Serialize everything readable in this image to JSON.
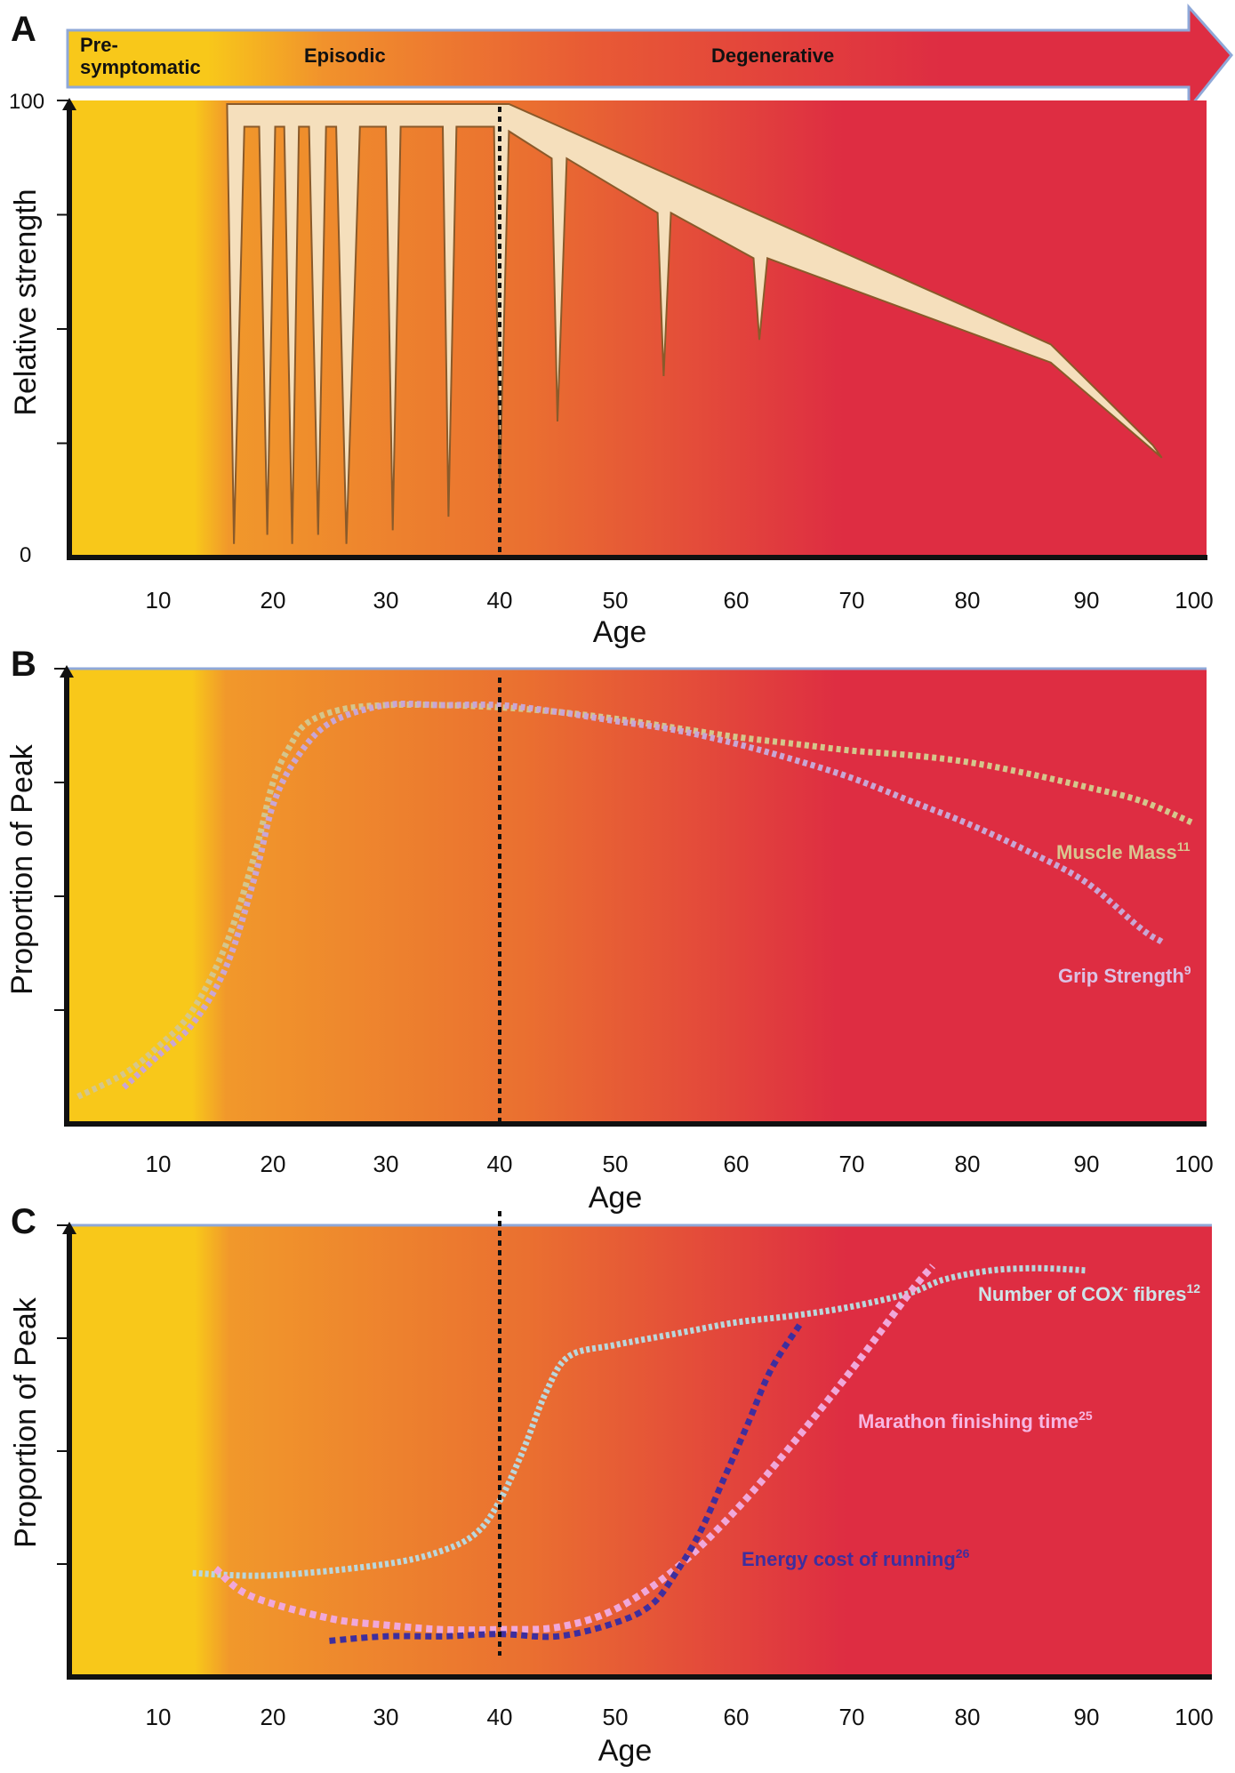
{
  "colors": {
    "yellow": "#F8C81A",
    "orange": "#EE8A2A",
    "red": "#DE2D42",
    "strength_fill": "#F5DFBC",
    "strength_stroke": "#8A5A2A",
    "muscle_mass": "#D4C68C",
    "grip_strength": "#C9A6D4",
    "cox_fibres": "#B9D7DC",
    "marathon": "#F0A8DA",
    "energy_cost": "#3E2E9E"
  },
  "stages": [
    "Pre-\nsymptomatic",
    "Episodic",
    "Degenerative"
  ],
  "chart_data": [
    {
      "panel": "A",
      "type": "area",
      "title": "",
      "xlabel": "Age",
      "ylabel": "Relative strength",
      "xlim": [
        3,
        101
      ],
      "ylim": [
        0,
        100
      ],
      "x_ticks": [
        10,
        20,
        30,
        40,
        50,
        60,
        70,
        80,
        90,
        100
      ],
      "y_tick_labels": [
        "100",
        "0"
      ],
      "vline_age": 40,
      "series": [
        {
          "name": "Relative strength",
          "x": [
            16,
            16.6,
            17.5,
            18.8,
            19.5,
            20.2,
            21,
            21.7,
            22.3,
            23.2,
            24,
            24.7,
            25.6,
            26.5,
            27.7,
            30,
            30.6,
            31.3,
            35,
            35.5,
            36.2,
            39.5,
            40,
            40.8,
            44.5,
            45,
            45.8,
            53.5,
            54,
            54.6,
            61.5,
            62,
            62.7,
            87,
            97
          ],
          "y": [
            100,
            3,
            95,
            95,
            5,
            95,
            95,
            3,
            95,
            95,
            5,
            95,
            95,
            3,
            95,
            95,
            6,
            95,
            95,
            9,
            95,
            95,
            15,
            94,
            88,
            30,
            88,
            76,
            40,
            76,
            66,
            48,
            66,
            43,
            22
          ]
        }
      ]
    },
    {
      "panel": "B",
      "type": "line",
      "title": "",
      "xlabel": "Age",
      "ylabel": "Proportion of Peak",
      "xlim": [
        3,
        101
      ],
      "ylim": [
        0,
        100
      ],
      "x_ticks": [
        10,
        20,
        30,
        40,
        50,
        60,
        70,
        80,
        90,
        100
      ],
      "vline_age": 40,
      "series": [
        {
          "name": "Muscle Mass",
          "superscript": "11",
          "x": [
            3,
            7,
            10,
            13,
            16,
            18.5,
            20,
            21.5,
            23,
            26,
            30,
            35,
            40,
            45,
            50,
            55,
            60,
            65,
            70,
            75,
            80,
            85,
            90,
            95,
            100
          ],
          "y": [
            6,
            11,
            17,
            25,
            40,
            60,
            75,
            83,
            88,
            91,
            92,
            92,
            91.5,
            90.5,
            89,
            87,
            85,
            83.5,
            82,
            81,
            79.5,
            77,
            74,
            71,
            66
          ]
        },
        {
          "name": "Grip Strength",
          "superscript": "9",
          "x": [
            7,
            10,
            13,
            16,
            18.5,
            20,
            22,
            25,
            30,
            35,
            40,
            45,
            50,
            55,
            60,
            65,
            70,
            75,
            80,
            85,
            90,
            95,
            97
          ],
          "y": [
            8,
            15,
            22,
            35,
            55,
            70,
            80,
            88,
            92,
            92,
            92,
            90.5,
            88.5,
            86.5,
            83.5,
            80,
            76,
            71,
            66,
            60,
            53,
            43,
            40
          ]
        }
      ]
    },
    {
      "panel": "C",
      "type": "line",
      "title": "",
      "xlabel": "Age",
      "ylabel": "Proportion of Peak",
      "xlim": [
        3,
        101
      ],
      "ylim": [
        0,
        100
      ],
      "x_ticks": [
        10,
        20,
        30,
        40,
        50,
        60,
        70,
        80,
        90,
        100
      ],
      "vline_age": 40,
      "series": [
        {
          "name": "Number of COX",
          "name_sup_minus": "-",
          "name_suffix": " fibres",
          "superscript": "12",
          "x": [
            13,
            20,
            30,
            35,
            38,
            40,
            42,
            44,
            46,
            50,
            55,
            60,
            65,
            70,
            75,
            78,
            82,
            86,
            90
          ],
          "y": [
            23,
            22.5,
            25,
            28,
            32,
            39,
            50,
            63,
            71,
            73.5,
            76,
            78.5,
            80,
            82,
            85,
            88,
            90,
            90.5,
            90
          ]
        },
        {
          "name": "Marathon finishing time",
          "superscript": "25",
          "x": [
            15,
            18,
            25,
            30,
            35,
            40,
            45,
            50,
            55,
            60,
            65,
            70,
            75,
            77
          ],
          "y": [
            24,
            18,
            13,
            11.5,
            10.5,
            10.5,
            11,
            15,
            24,
            37,
            52,
            68,
            85,
            91
          ]
        },
        {
          "name": "Energy cost of running",
          "superscript": "26",
          "x": [
            25,
            30,
            35,
            40,
            45,
            50,
            53,
            55,
            57,
            59,
            61,
            63,
            65.5
          ],
          "y": [
            8,
            9,
            9,
            9.5,
            9,
            12,
            16,
            23,
            32,
            44,
            56,
            68,
            78
          ]
        }
      ]
    }
  ]
}
